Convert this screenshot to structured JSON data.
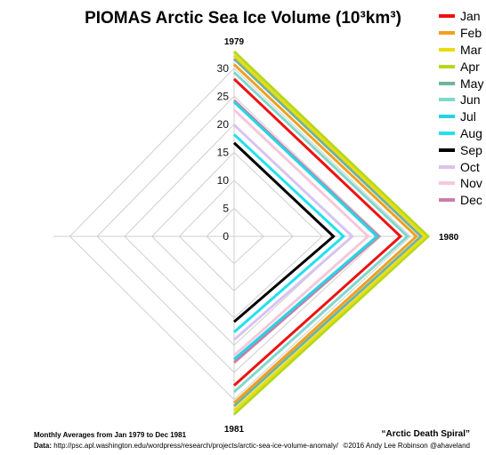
{
  "title": "PIOMAS Arctic Sea Ice Volume (10³km³)",
  "footer": {
    "period": "Monthly Averages from Jan 1979 to Dec 1981",
    "data_label": "Data:",
    "data_url": "http://psc.apl.washington.edu/wordpress/research/projects/arctic-sea-ice-volume-anomaly/",
    "slogan": "“Arctic Death Spiral”",
    "copyright": "©2016 Andy Lee Robinson @ahaveland"
  },
  "chart_data": {
    "type": "radar",
    "title": "PIOMAS Arctic Sea Ice Volume (10³km³)",
    "spokes": [
      "1979",
      "1980",
      "1981",
      ""
    ],
    "rlim": [
      0,
      33
    ],
    "rticks": [
      0,
      5,
      10,
      15,
      20,
      25,
      30
    ],
    "grid": true,
    "legend_position": "right",
    "series": [
      {
        "name": "Jan",
        "color": "#ee1111",
        "values": [
          28.1,
          28.3,
          27.4
        ]
      },
      {
        "name": "Feb",
        "color": "#f0a020",
        "values": [
          30.7,
          31.0,
          30.6
        ]
      },
      {
        "name": "Mar",
        "color": "#eadc10",
        "values": [
          32.3,
          32.5,
          32.0
        ]
      },
      {
        "name": "Apr",
        "color": "#b3d81e",
        "values": [
          33.0,
          33.0,
          32.7
        ]
      },
      {
        "name": "May",
        "color": "#6fb59a",
        "values": [
          31.7,
          31.8,
          31.2
        ]
      },
      {
        "name": "Jun",
        "color": "#7fd8cc",
        "values": [
          29.3,
          29.5,
          28.6
        ]
      },
      {
        "name": "Jul",
        "color": "#26d4e4",
        "values": [
          24.0,
          24.3,
          22.6
        ]
      },
      {
        "name": "Aug",
        "color": "#22e0ee",
        "values": [
          18.2,
          18.6,
          17.6
        ]
      },
      {
        "name": "Sep",
        "color": "#000000",
        "values": [
          16.7,
          16.9,
          15.7
        ]
      },
      {
        "name": "Oct",
        "color": "#d8c4ee",
        "values": [
          19.9,
          20.1,
          19.0
        ]
      },
      {
        "name": "Nov",
        "color": "#f4c8dc",
        "values": [
          22.6,
          22.8,
          21.9
        ]
      },
      {
        "name": "Dec",
        "color": "#c87ea8",
        "values": [
          24.3,
          24.6,
          23.2
        ]
      }
    ]
  }
}
